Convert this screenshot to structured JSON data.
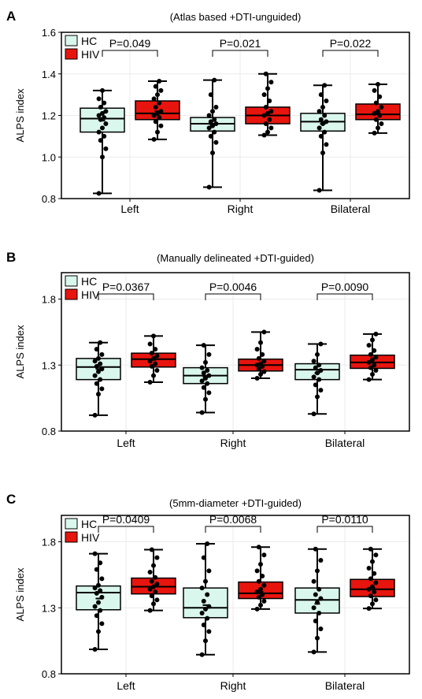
{
  "legend_labels": [
    "HC",
    "HIV"
  ],
  "colors": {
    "hc": "#D9F7EC",
    "hiv": "#E8140E",
    "frame": "#000000",
    "grid": "#EBEBEB"
  },
  "chart_data": [
    {
      "panel_letter": "A",
      "title": "(Atlas based +DTI-unguided)",
      "type": "box",
      "ylabel": "ALPS index",
      "ylim": [
        0.8,
        1.6
      ],
      "yticks": [
        "0.8",
        "1.0",
        "1.2",
        "1.4",
        "1.6"
      ],
      "categories": [
        "Left",
        "Right",
        "Bilateral"
      ],
      "pvalues": [
        "P=0.049",
        "P=0.021",
        "P=0.022"
      ],
      "legend": "top-left",
      "series": [
        {
          "name": "HC",
          "boxes": [
            {
              "min": 0.825,
              "q1": 1.12,
              "median": 1.185,
              "q3": 1.235,
              "max": 1.32,
              "mean": 1.175,
              "points": [
                0.825,
                1.0,
                1.04,
                1.08,
                1.1,
                1.12,
                1.14,
                1.16,
                1.18,
                1.19,
                1.2,
                1.21,
                1.22,
                1.24,
                1.26,
                1.28,
                1.32
              ]
            },
            {
              "min": 0.855,
              "q1": 1.125,
              "median": 1.16,
              "q3": 1.19,
              "max": 1.37,
              "mean": 1.155,
              "points": [
                0.855,
                1.02,
                1.07,
                1.1,
                1.12,
                1.14,
                1.15,
                1.16,
                1.17,
                1.18,
                1.2,
                1.22,
                1.24,
                1.3,
                1.37
              ]
            },
            {
              "min": 0.84,
              "q1": 1.125,
              "median": 1.17,
              "q3": 1.21,
              "max": 1.345,
              "mean": 1.16,
              "points": [
                0.84,
                1.02,
                1.06,
                1.1,
                1.12,
                1.14,
                1.16,
                1.17,
                1.18,
                1.2,
                1.22,
                1.24,
                1.27,
                1.3,
                1.345
              ]
            }
          ]
        },
        {
          "name": "HIV",
          "boxes": [
            {
              "min": 1.085,
              "q1": 1.18,
              "median": 1.21,
              "q3": 1.27,
              "max": 1.365,
              "mean": 1.22,
              "points": [
                1.085,
                1.12,
                1.15,
                1.17,
                1.19,
                1.2,
                1.21,
                1.22,
                1.24,
                1.26,
                1.28,
                1.3,
                1.32,
                1.34,
                1.365
              ]
            },
            {
              "min": 1.105,
              "q1": 1.16,
              "median": 1.2,
              "q3": 1.24,
              "max": 1.4,
              "mean": 1.2,
              "points": [
                1.105,
                1.12,
                1.14,
                1.16,
                1.18,
                1.2,
                1.21,
                1.22,
                1.24,
                1.27,
                1.3,
                1.33,
                1.36,
                1.4
              ]
            },
            {
              "min": 1.115,
              "q1": 1.18,
              "median": 1.205,
              "q3": 1.255,
              "max": 1.35,
              "mean": 1.21,
              "points": [
                1.115,
                1.14,
                1.16,
                1.18,
                1.2,
                1.21,
                1.22,
                1.24,
                1.26,
                1.29,
                1.32,
                1.35
              ]
            }
          ]
        }
      ]
    },
    {
      "panel_letter": "B",
      "title": "(Manually delineated +DTI-guided)",
      "type": "box",
      "ylabel": "ALPS index",
      "ylim": [
        0.8,
        2.0
      ],
      "yticks": [
        "0.8",
        "1.3",
        "1.8"
      ],
      "categories": [
        "Left",
        "Right",
        "Bilateral"
      ],
      "pvalues": [
        "P=0.0367",
        "P=0.0046",
        "P=0.0090"
      ],
      "legend": "top-left",
      "series": [
        {
          "name": "HC",
          "boxes": [
            {
              "min": 0.92,
              "q1": 1.19,
              "median": 1.285,
              "q3": 1.35,
              "max": 1.47,
              "mean": 1.27,
              "points": [
                0.92,
                1.08,
                1.12,
                1.16,
                1.19,
                1.22,
                1.25,
                1.27,
                1.29,
                1.31,
                1.33,
                1.35,
                1.38,
                1.42,
                1.47
              ]
            },
            {
              "min": 0.94,
              "q1": 1.16,
              "median": 1.22,
              "q3": 1.28,
              "max": 1.45,
              "mean": 1.21,
              "points": [
                0.94,
                1.04,
                1.09,
                1.13,
                1.16,
                1.18,
                1.2,
                1.22,
                1.24,
                1.26,
                1.28,
                1.32,
                1.38,
                1.45
              ]
            },
            {
              "min": 0.93,
              "q1": 1.19,
              "median": 1.265,
              "q3": 1.31,
              "max": 1.46,
              "mean": 1.24,
              "points": [
                0.93,
                1.06,
                1.11,
                1.15,
                1.19,
                1.21,
                1.24,
                1.26,
                1.28,
                1.3,
                1.33,
                1.38,
                1.46
              ]
            }
          ]
        },
        {
          "name": "HIV",
          "boxes": [
            {
              "min": 1.17,
              "q1": 1.285,
              "median": 1.345,
              "q3": 1.39,
              "max": 1.52,
              "mean": 1.34,
              "points": [
                1.17,
                1.22,
                1.26,
                1.29,
                1.31,
                1.33,
                1.35,
                1.37,
                1.39,
                1.42,
                1.46,
                1.52
              ]
            },
            {
              "min": 1.2,
              "q1": 1.255,
              "median": 1.3,
              "q3": 1.345,
              "max": 1.55,
              "mean": 1.3,
              "points": [
                1.2,
                1.23,
                1.25,
                1.27,
                1.29,
                1.3,
                1.31,
                1.33,
                1.35,
                1.38,
                1.42,
                1.47,
                1.55
              ]
            },
            {
              "min": 1.19,
              "q1": 1.275,
              "median": 1.32,
              "q3": 1.375,
              "max": 1.535,
              "mean": 1.32,
              "points": [
                1.19,
                1.23,
                1.26,
                1.28,
                1.3,
                1.32,
                1.34,
                1.36,
                1.38,
                1.41,
                1.45,
                1.49,
                1.535
              ]
            }
          ]
        }
      ]
    },
    {
      "panel_letter": "C",
      "title": "(5mm-diameter +DTI-guided)",
      "type": "box",
      "ylabel": "ALPS index",
      "ylim": [
        0.8,
        2.0
      ],
      "yticks": [
        "0.8",
        "1.3",
        "1.8"
      ],
      "categories": [
        "Left",
        "Right",
        "Bilateral"
      ],
      "pvalues": [
        "P=0.0409",
        "P=0.0068",
        "P=0.0110"
      ],
      "legend": "top-left",
      "series": [
        {
          "name": "HC",
          "boxes": [
            {
              "min": 0.985,
              "q1": 1.285,
              "median": 1.415,
              "q3": 1.465,
              "max": 1.71,
              "mean": 1.37,
              "points": [
                0.985,
                1.12,
                1.18,
                1.24,
                1.28,
                1.31,
                1.34,
                1.38,
                1.41,
                1.43,
                1.45,
                1.47,
                1.52,
                1.59,
                1.64,
                1.71
              ]
            },
            {
              "min": 0.945,
              "q1": 1.225,
              "median": 1.3,
              "q3": 1.45,
              "max": 1.785,
              "mean": 1.32,
              "points": [
                0.945,
                1.05,
                1.12,
                1.17,
                1.22,
                1.26,
                1.29,
                1.31,
                1.35,
                1.4,
                1.45,
                1.5,
                1.58,
                1.68,
                1.785
              ]
            },
            {
              "min": 0.965,
              "q1": 1.26,
              "median": 1.36,
              "q3": 1.45,
              "max": 1.745,
              "mean": 1.33,
              "points": [
                0.965,
                1.07,
                1.14,
                1.2,
                1.26,
                1.3,
                1.34,
                1.37,
                1.4,
                1.44,
                1.5,
                1.58,
                1.66,
                1.745
              ]
            }
          ]
        },
        {
          "name": "HIV",
          "boxes": [
            {
              "min": 1.28,
              "q1": 1.405,
              "median": 1.46,
              "q3": 1.525,
              "max": 1.74,
              "mean": 1.46,
              "points": [
                1.28,
                1.33,
                1.36,
                1.39,
                1.42,
                1.44,
                1.46,
                1.48,
                1.5,
                1.53,
                1.57,
                1.62,
                1.68,
                1.74
              ]
            },
            {
              "min": 1.29,
              "q1": 1.37,
              "median": 1.41,
              "q3": 1.495,
              "max": 1.76,
              "mean": 1.42,
              "points": [
                1.29,
                1.32,
                1.35,
                1.38,
                1.4,
                1.42,
                1.44,
                1.47,
                1.5,
                1.54,
                1.58,
                1.63,
                1.7,
                1.76
              ]
            },
            {
              "min": 1.295,
              "q1": 1.385,
              "median": 1.44,
              "q3": 1.515,
              "max": 1.745,
              "mean": 1.45,
              "points": [
                1.295,
                1.33,
                1.36,
                1.39,
                1.42,
                1.44,
                1.46,
                1.49,
                1.52,
                1.56,
                1.6,
                1.65,
                1.7,
                1.745
              ]
            }
          ]
        }
      ]
    }
  ]
}
